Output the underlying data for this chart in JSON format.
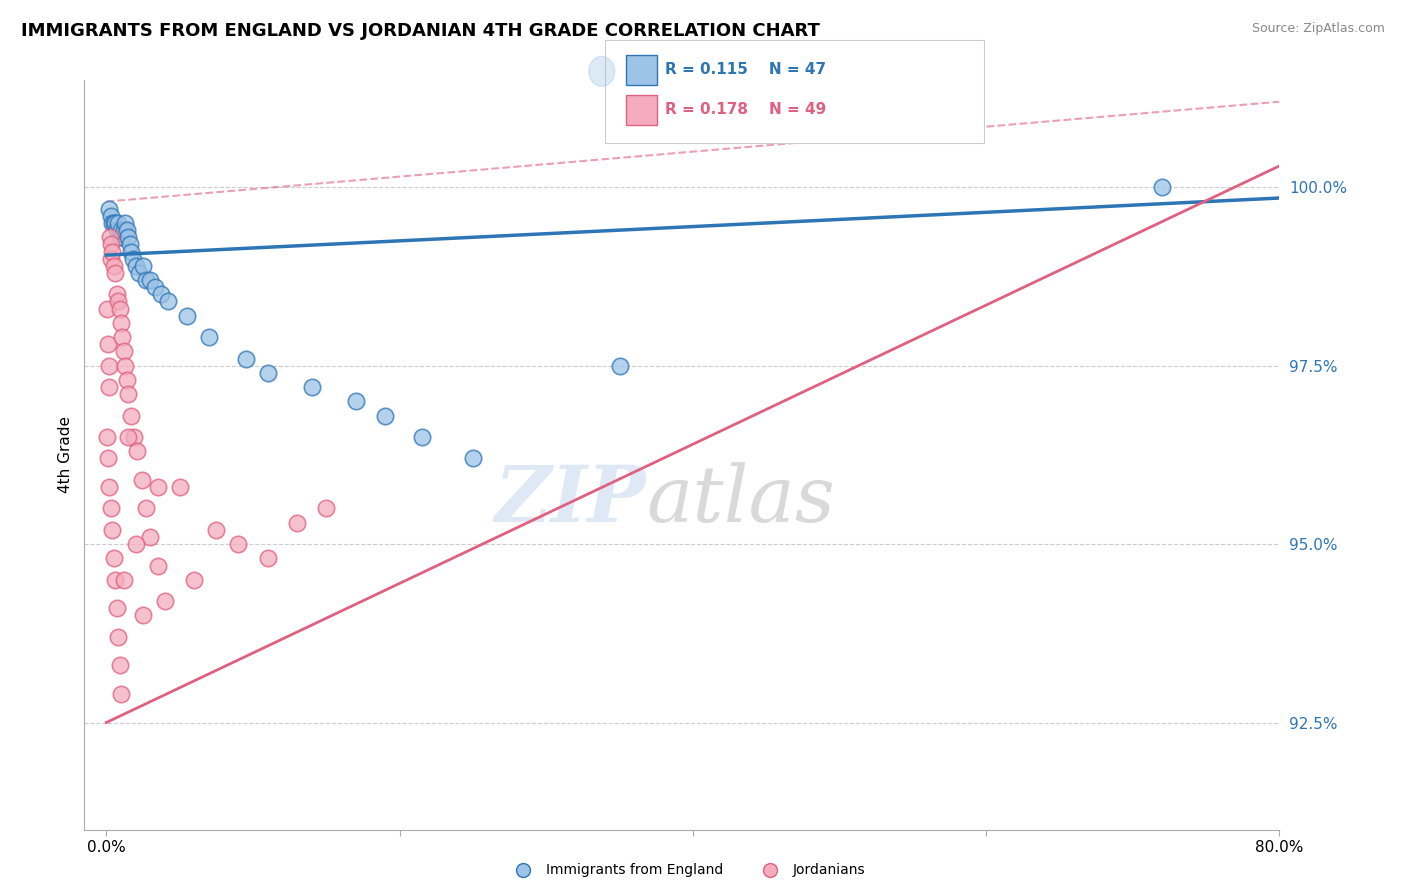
{
  "title": "IMMIGRANTS FROM ENGLAND VS JORDANIAN 4TH GRADE CORRELATION CHART",
  "source": "Source: ZipAtlas.com",
  "ylabel": "4th Grade",
  "xlim": [
    -1.5,
    80.0
  ],
  "ylim": [
    91.0,
    101.5
  ],
  "yticks": [
    92.5,
    95.0,
    97.5,
    100.0
  ],
  "ytick_labels": [
    "92.5%",
    "95.0%",
    "97.5%",
    "100.0%"
  ],
  "xticks": [
    0.0,
    20.0,
    40.0,
    60.0,
    80.0
  ],
  "xtick_labels": [
    "0.0%",
    "",
    "",
    "",
    "80.0%"
  ],
  "legend_R1": "R = 0.115",
  "legend_N1": "N = 47",
  "legend_R2": "R = 0.178",
  "legend_N2": "N = 49",
  "color_blue": "#9DC3E6",
  "color_pink": "#F4ACBE",
  "color_blue_line": "#2E75B6",
  "color_pink_line": "#E06080",
  "color_pink_solid_line": "#E06080",
  "watermark_zip": "ZIP",
  "watermark_atlas": "atlas",
  "blue_trend_x0": 0,
  "blue_trend_y0": 99.05,
  "blue_trend_x1": 80,
  "blue_trend_y1": 99.85,
  "pink_solid_x0": 0,
  "pink_solid_y0": 92.5,
  "pink_solid_x1": 80,
  "pink_solid_y1": 100.3,
  "pink_dash_x0": 0,
  "pink_dash_y0": 99.8,
  "pink_dash_x1": 80,
  "pink_dash_y1": 101.2,
  "blue_scatter_x": [
    0.2,
    0.3,
    0.4,
    0.5,
    0.6,
    0.7,
    0.8,
    0.9,
    1.0,
    1.1,
    1.2,
    1.3,
    1.4,
    1.5,
    1.6,
    1.7,
    1.8,
    2.0,
    2.2,
    2.5,
    2.7,
    3.0,
    3.3,
    3.7,
    4.2,
    5.5,
    7.0,
    9.5,
    11.0,
    14.0,
    17.0,
    19.0,
    21.5,
    25.0,
    35.0,
    72.0
  ],
  "blue_scatter_y": [
    99.7,
    99.6,
    99.5,
    99.5,
    99.5,
    99.4,
    99.5,
    99.3,
    99.4,
    99.3,
    99.4,
    99.5,
    99.4,
    99.3,
    99.2,
    99.1,
    99.0,
    98.9,
    98.8,
    98.9,
    98.7,
    98.7,
    98.6,
    98.5,
    98.4,
    98.2,
    97.9,
    97.6,
    97.4,
    97.2,
    97.0,
    96.8,
    96.5,
    96.2,
    97.5,
    100.0
  ],
  "pink_scatter_x": [
    0.05,
    0.1,
    0.15,
    0.2,
    0.25,
    0.3,
    0.35,
    0.4,
    0.5,
    0.6,
    0.7,
    0.8,
    0.9,
    1.0,
    1.1,
    1.2,
    1.3,
    1.4,
    1.5,
    1.7,
    1.9,
    2.1,
    2.4,
    2.7,
    3.0,
    3.5,
    4.0,
    5.0,
    6.0,
    7.5,
    9.0,
    11.0,
    13.0,
    15.0
  ],
  "pink_scatter_y": [
    98.3,
    97.8,
    97.5,
    97.2,
    99.3,
    99.2,
    99.0,
    99.1,
    98.9,
    98.8,
    98.5,
    98.4,
    98.3,
    98.1,
    97.9,
    97.7,
    97.5,
    97.3,
    97.1,
    96.8,
    96.5,
    96.3,
    95.9,
    95.5,
    95.1,
    94.7,
    94.2,
    95.8,
    94.5,
    95.2,
    95.0,
    94.8,
    95.3,
    95.5
  ],
  "pink_scatter_x2": [
    0.05,
    0.1,
    0.2,
    0.3,
    0.4,
    0.5,
    0.6,
    0.7,
    0.8,
    0.9,
    1.0,
    1.2,
    1.5,
    2.0,
    2.5,
    3.5
  ],
  "pink_scatter_y2": [
    96.5,
    96.2,
    95.8,
    95.5,
    95.2,
    94.8,
    94.5,
    94.1,
    93.7,
    93.3,
    92.9,
    94.5,
    96.5,
    95.0,
    94.0,
    95.8
  ]
}
